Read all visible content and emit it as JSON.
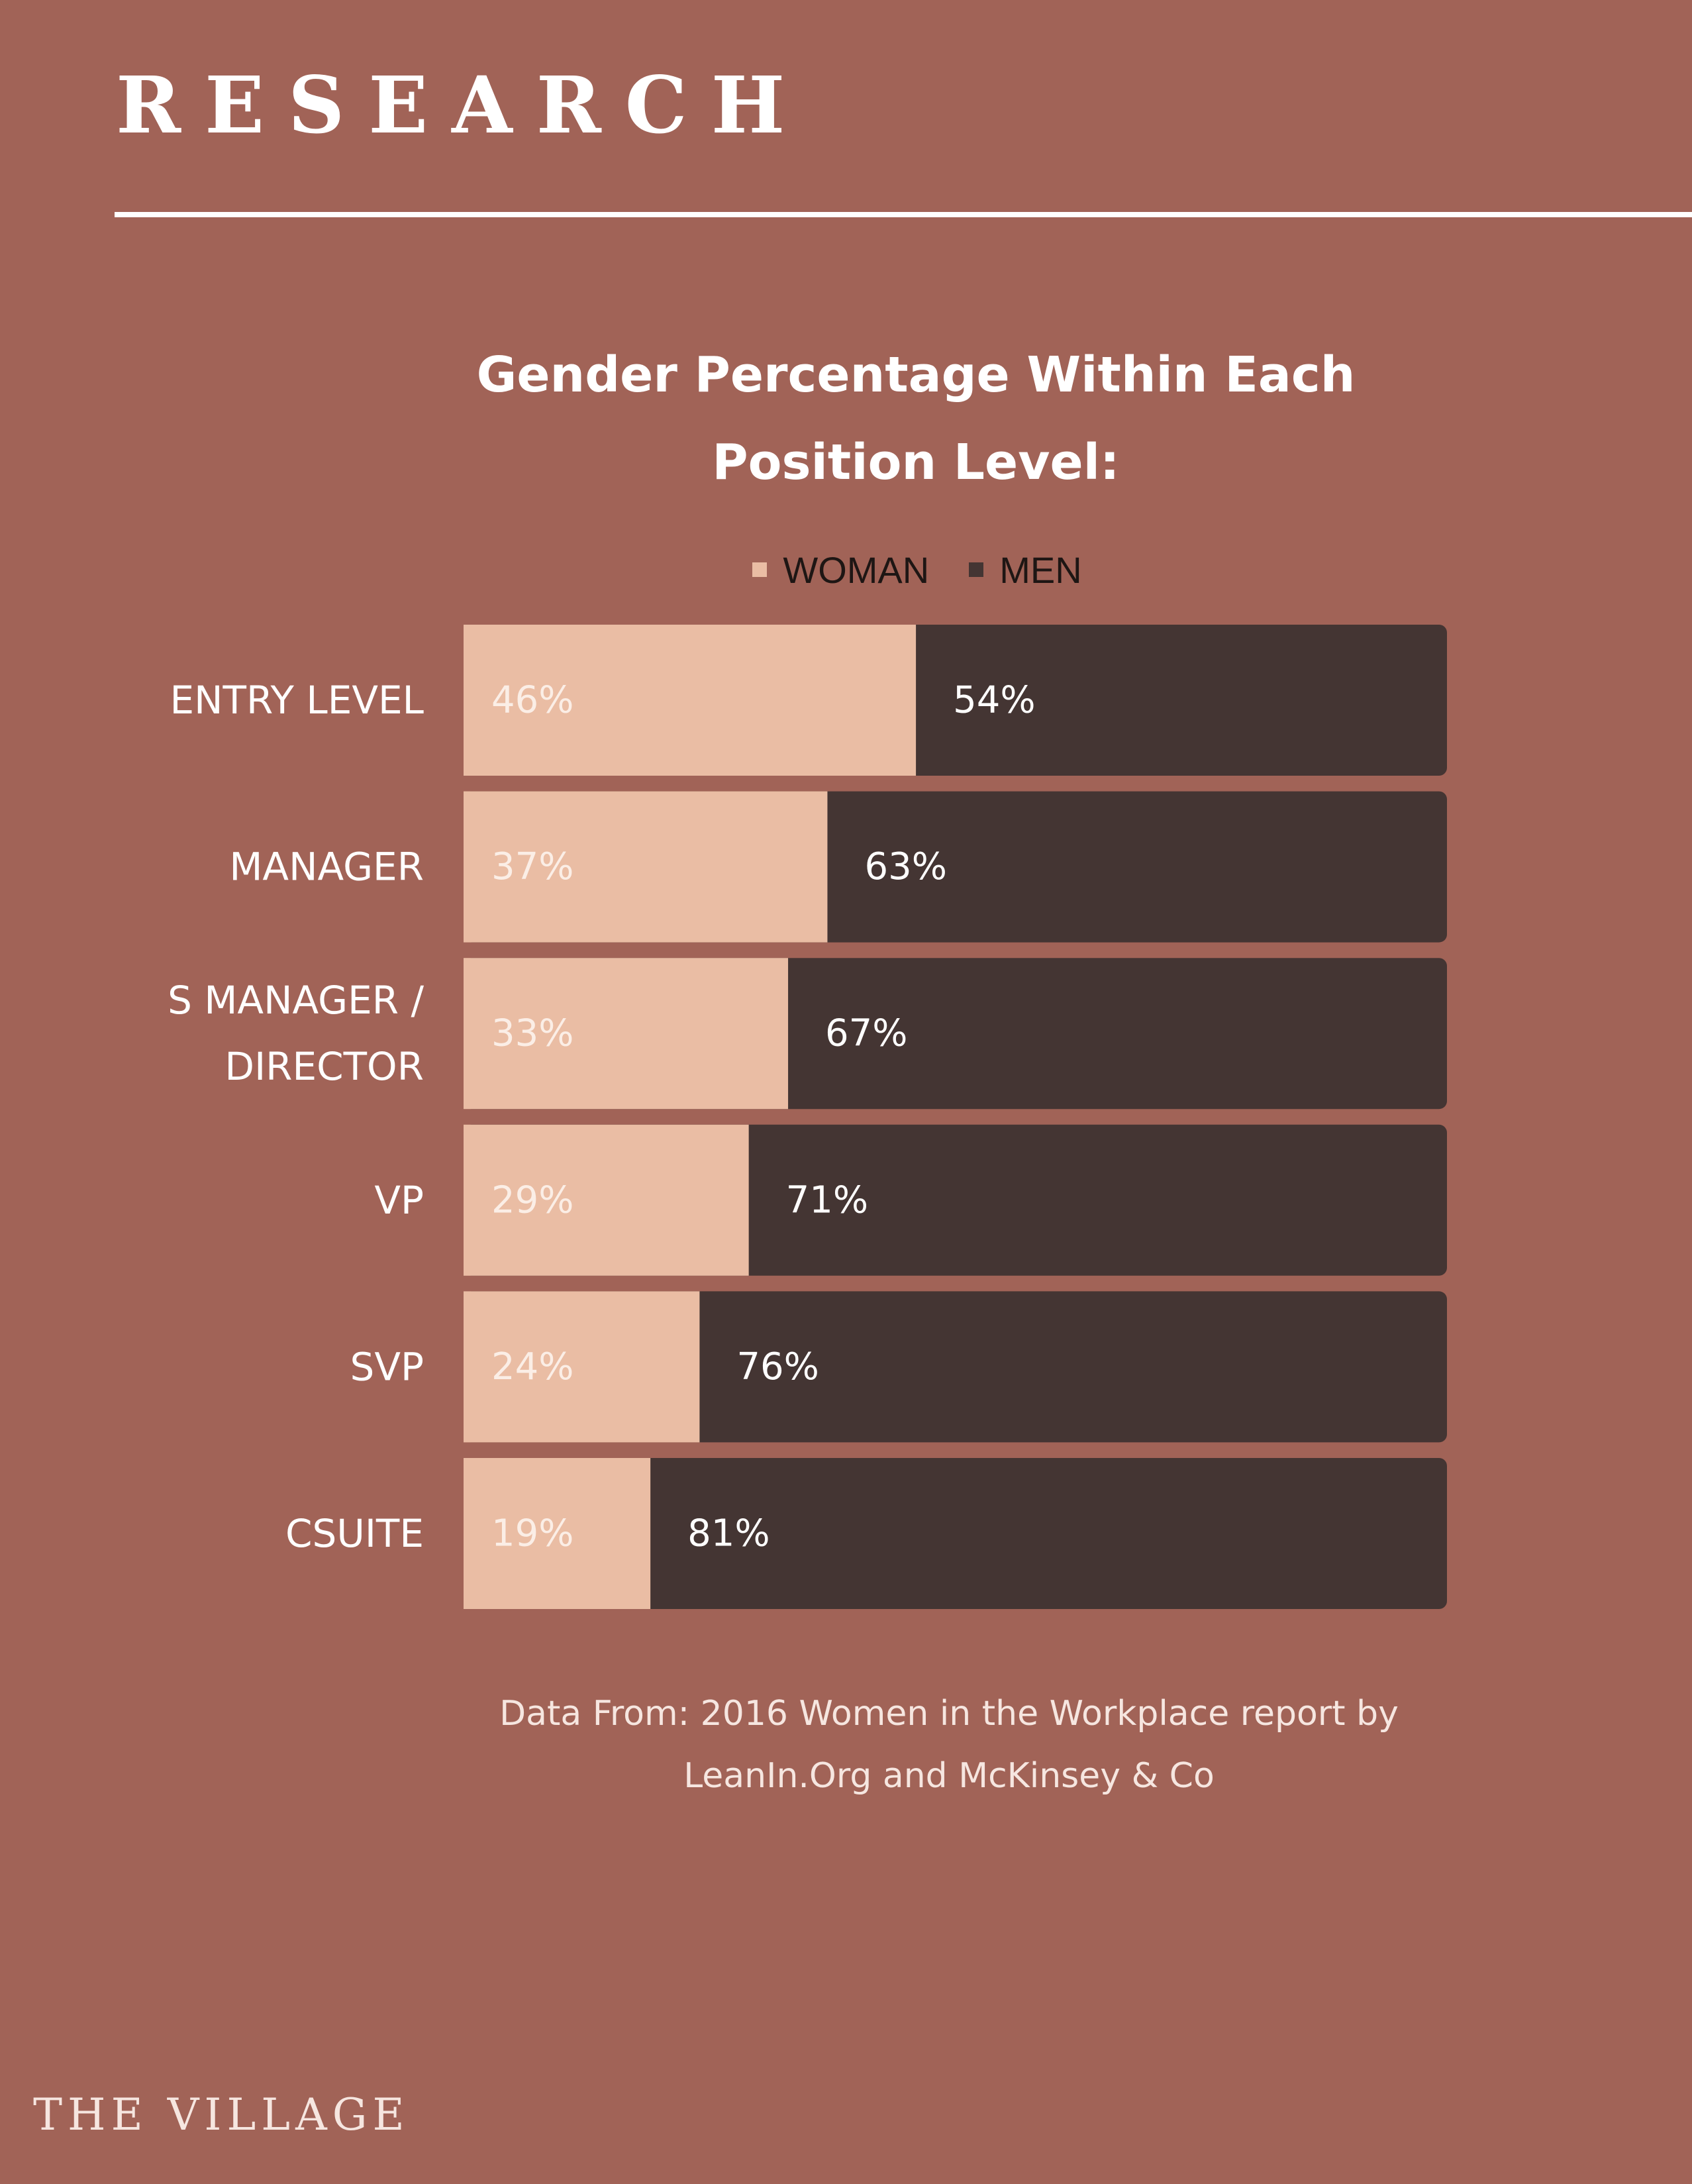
{
  "header": {
    "title": "RESEARCH"
  },
  "chart_data": {
    "type": "bar",
    "orientation": "horizontal",
    "stacked": true,
    "title_line1": "Gender Percentage Within Each",
    "title_line2": "Position Level:",
    "categories": [
      [
        "ENTRY LEVEL"
      ],
      [
        "MANAGER"
      ],
      [
        "S MANAGER /",
        "DIRECTOR"
      ],
      [
        "VP"
      ],
      [
        "SVP"
      ],
      [
        "CSUITE"
      ]
    ],
    "series": [
      {
        "name": "WOMAN",
        "color": "#eabda4",
        "label_color": "#fbeee6",
        "values": [
          46,
          37,
          33,
          29,
          24,
          19
        ]
      },
      {
        "name": "MEN",
        "color": "#443533",
        "label_color": "#ffffff",
        "values": [
          54,
          63,
          67,
          71,
          76,
          81
        ]
      }
    ],
    "value_suffix": "%",
    "xlim": [
      0,
      100
    ],
    "legend_position": "top"
  },
  "source": {
    "line1": "Data From: 2016 Women in the Workplace report by",
    "line2": "LeanIn.Org and McKinsey & Co"
  },
  "footer": {
    "brand": "THE VILLAGE"
  },
  "colors": {
    "background": "#a16357",
    "woman": "#eabda4",
    "men": "#443533",
    "text": "#ffffff"
  }
}
